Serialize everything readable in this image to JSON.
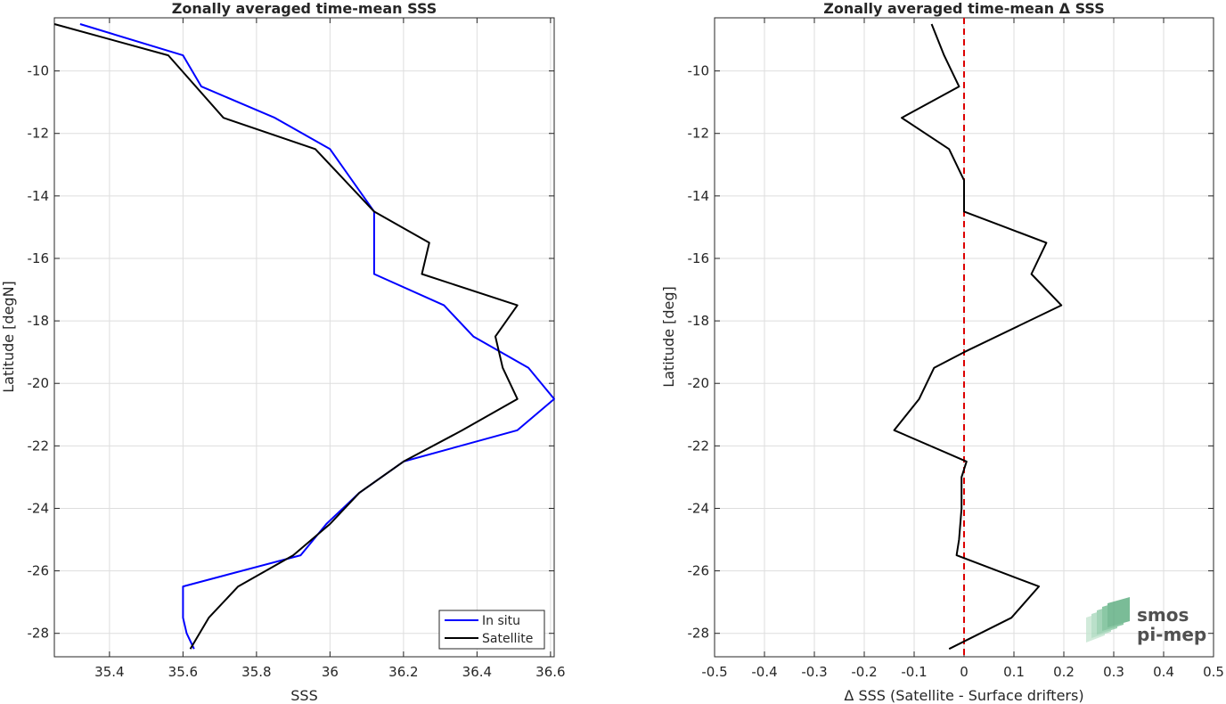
{
  "chart_data": [
    {
      "type": "line",
      "title": "Zonally averaged time-mean SSS",
      "xlabel": "SSS",
      "ylabel": "Latitude [degN]",
      "xlim": [
        35.25,
        36.61
      ],
      "ylim": [
        -28.75,
        -8.3
      ],
      "xticks": [
        35.4,
        35.6,
        35.8,
        36.0,
        36.2,
        36.4,
        36.6
      ],
      "xtick_labels": [
        "35.4",
        "35.6",
        "35.8",
        "36",
        "36.2",
        "36.4",
        "36.6"
      ],
      "yticks": [
        -28,
        -26,
        -24,
        -22,
        -20,
        -18,
        -16,
        -14,
        -12,
        -10
      ],
      "ytick_labels": [
        "-28",
        "-26",
        "-24",
        "-22",
        "-20",
        "-18",
        "-16",
        "-14",
        "-12",
        "-10"
      ],
      "grid": true,
      "legend_position": "bottom-right",
      "series": [
        {
          "name": "In situ",
          "color": "#0000ff",
          "x": [
            35.32,
            35.6,
            35.65,
            35.85,
            36.0,
            36.12,
            36.12,
            36.12,
            36.31,
            36.39,
            36.54,
            36.61,
            36.51,
            36.2,
            36.08,
            35.99,
            35.92,
            35.6,
            35.6,
            35.61,
            35.63
          ],
          "y": [
            -8.5,
            -9.5,
            -10.5,
            -11.5,
            -12.5,
            -14.5,
            -15.5,
            -16.5,
            -17.5,
            -18.5,
            -19.5,
            -20.5,
            -21.5,
            -22.5,
            -23.5,
            -24.5,
            -25.5,
            -26.5,
            -27.5,
            -28.0,
            -28.5
          ]
        },
        {
          "name": "Satellite",
          "color": "#000000",
          "x": [
            35.25,
            35.56,
            35.71,
            35.96,
            36.12,
            36.27,
            36.25,
            36.51,
            36.45,
            36.47,
            36.51,
            36.36,
            36.2,
            36.08,
            36.0,
            35.9,
            35.75,
            35.67,
            35.62
          ],
          "y": [
            -8.5,
            -9.5,
            -11.5,
            -12.5,
            -14.5,
            -15.5,
            -16.5,
            -17.5,
            -18.5,
            -19.5,
            -20.5,
            -21.5,
            -22.5,
            -23.5,
            -24.5,
            -25.5,
            -26.5,
            -27.5,
            -28.5
          ]
        }
      ]
    },
    {
      "type": "line",
      "title": "Zonally averaged time-mean Δ SSS",
      "xlabel": "Δ SSS (Satellite - Surface drifters)",
      "ylabel": "Latitude [deg]",
      "xlim": [
        -0.5,
        0.5
      ],
      "ylim": [
        -28.75,
        -8.3
      ],
      "xticks": [
        -0.5,
        -0.4,
        -0.3,
        -0.2,
        -0.1,
        0,
        0.1,
        0.2,
        0.3,
        0.4,
        0.5
      ],
      "xtick_labels": [
        "-0.5",
        "-0.4",
        "-0.3",
        "-0.2",
        "-0.1",
        "0",
        "0.1",
        "0.2",
        "0.3",
        "0.4",
        "0.5"
      ],
      "yticks": [
        -28,
        -26,
        -24,
        -22,
        -20,
        -18,
        -16,
        -14,
        -12,
        -10
      ],
      "ytick_labels": [
        "-28",
        "-26",
        "-24",
        "-22",
        "-20",
        "-18",
        "-16",
        "-14",
        "-12",
        "-10"
      ],
      "grid": true,
      "reference_line": {
        "x": 0,
        "color": "#dd0000",
        "style": "dashed"
      },
      "series": [
        {
          "color": "#000000",
          "x": [
            -0.065,
            -0.04,
            -0.01,
            -0.125,
            -0.03,
            0.0,
            0.0,
            0.0,
            0.165,
            0.135,
            0.195,
            0.0,
            -0.06,
            -0.09,
            -0.14,
            0.005,
            -0.005,
            -0.005,
            -0.01,
            -0.015,
            0.15,
            0.095,
            -0.03
          ],
          "y": [
            -8.5,
            -9.5,
            -10.5,
            -11.5,
            -12.5,
            -13.5,
            -14.0,
            -14.5,
            -15.5,
            -16.5,
            -17.5,
            -19.0,
            -19.5,
            -20.5,
            -21.5,
            -22.5,
            -23.0,
            -24.0,
            -25.0,
            -25.5,
            -26.5,
            -27.5,
            -28.5
          ]
        }
      ]
    }
  ],
  "logo": {
    "line1": "smos",
    "line2": "pi-mep",
    "color": "#8ccaa6"
  }
}
